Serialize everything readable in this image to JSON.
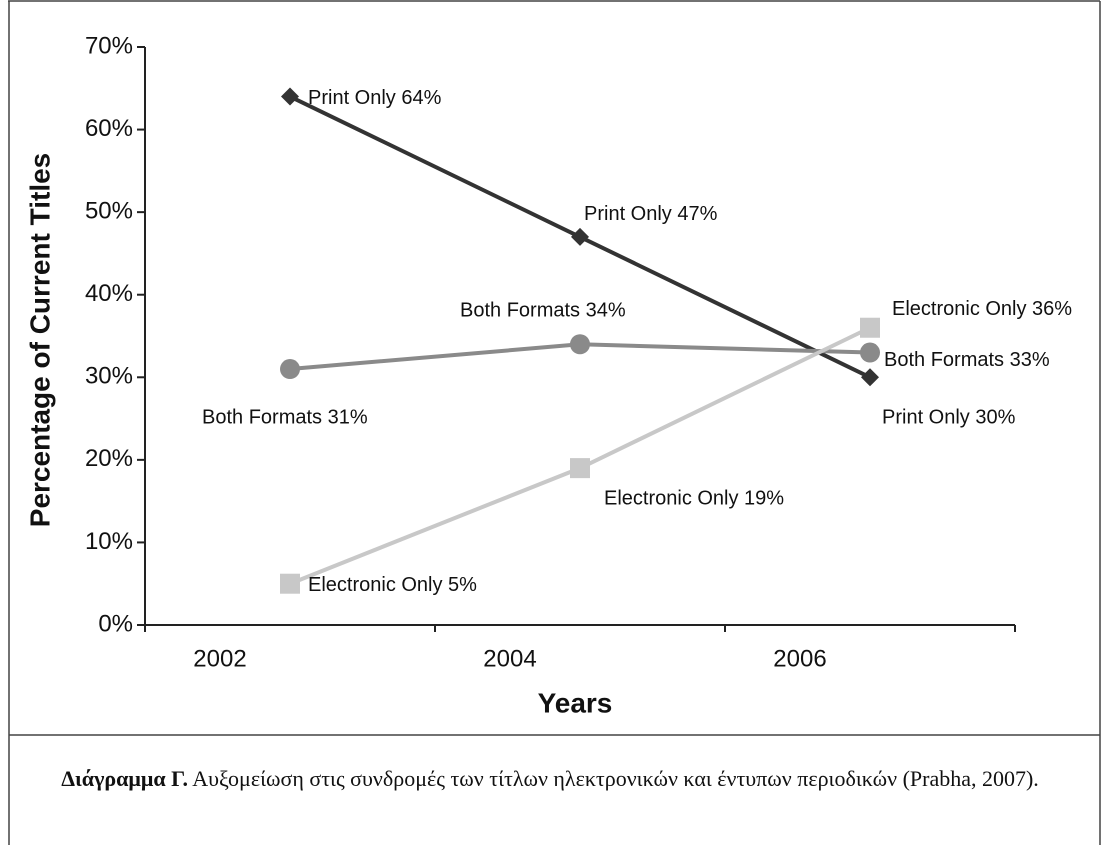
{
  "chart_data": {
    "type": "line",
    "xlabel": "Years",
    "ylabel": "Percentage of Current Titles",
    "categories": [
      "2002",
      "2004",
      "2006"
    ],
    "ylim": [
      0,
      70
    ],
    "yticks": [
      {
        "value": 0,
        "label": "0%"
      },
      {
        "value": 10,
        "label": "10%"
      },
      {
        "value": 20,
        "label": "20%"
      },
      {
        "value": 30,
        "label": "30%"
      },
      {
        "value": 40,
        "label": "40%"
      },
      {
        "value": 50,
        "label": "50%"
      },
      {
        "value": 60,
        "label": "60%"
      },
      {
        "value": 70,
        "label": "70%"
      }
    ],
    "series": [
      {
        "name": "Print Only",
        "color": "#333333",
        "marker": "diamond",
        "values": [
          64,
          47,
          30
        ],
        "value_labels": [
          "Print Only 64%",
          "Print Only 47%",
          "Print Only 30%"
        ]
      },
      {
        "name": "Both Formats",
        "color": "#8a8a8a",
        "marker": "circle",
        "values": [
          31,
          34,
          33
        ],
        "value_labels": [
          "Both Formats  31%",
          "Both Formats  34%",
          "Both Formats 33%"
        ]
      },
      {
        "name": "Electronic Only",
        "color": "#c8c8c8",
        "marker": "square",
        "values": [
          5,
          19,
          36
        ],
        "value_labels": [
          "Electronic Only 5%",
          "Electronic Only 19%",
          "Electronic Only 36%"
        ]
      }
    ]
  },
  "caption": {
    "label": "Διάγραμμα Γ.",
    "text": " Αυξομείωση στις συνδρομές των τίτλων ηλεκτρονικών και έντυπων περιοδικών (Prabha, 2007)."
  }
}
